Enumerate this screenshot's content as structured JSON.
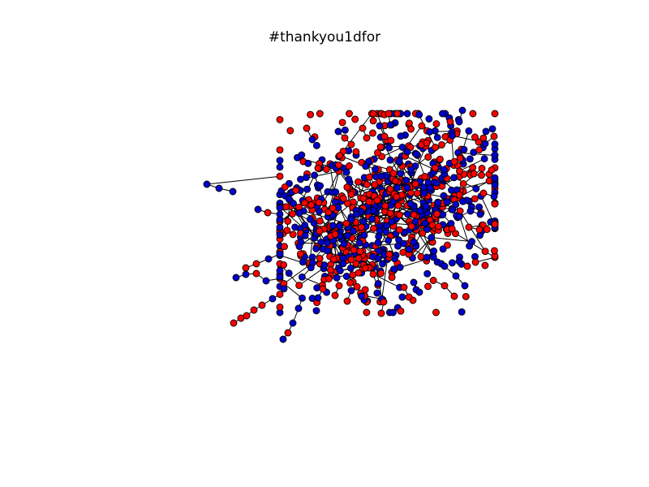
{
  "figure": {
    "title": "#thankyou1dfor"
  },
  "graph": {
    "type": "network",
    "node_colors": [
      "#ff0000",
      "#0000cc"
    ],
    "node_stroke": "#000000",
    "edge_color": "#000000",
    "background": "#ffffff"
  }
}
